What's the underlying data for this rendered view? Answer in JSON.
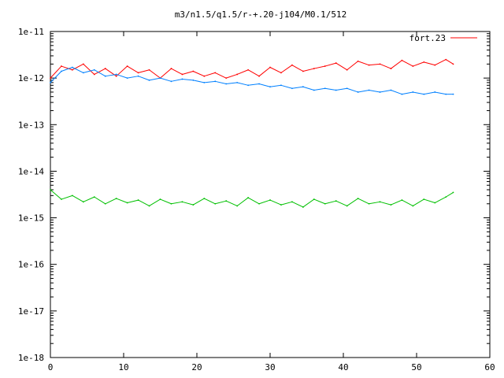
{
  "chart_data": {
    "type": "line",
    "title": "m3/n1.5/q1.5/r-+.20-j104/M0.1/512",
    "xlabel": "",
    "ylabel": "",
    "y_scale": "log",
    "xlim": [
      0,
      60
    ],
    "ylim": [
      1e-18,
      1e-11
    ],
    "x_ticks": [
      0,
      10,
      20,
      30,
      40,
      50,
      60
    ],
    "x_tick_labels": [
      "0",
      "10",
      "20",
      "30",
      "40",
      "50",
      "60"
    ],
    "y_ticks": [
      1e-18,
      1e-17,
      1e-16,
      1e-15,
      1e-14,
      1e-13,
      1e-12,
      1e-11
    ],
    "y_tick_labels": [
      "1e-18",
      "1e-17",
      "1e-16",
      "1e-15",
      "1e-14",
      "1e-13",
      "1e-12",
      "1e-11"
    ],
    "grid": false,
    "legend_position": "top-right",
    "series": [
      {
        "name": "fort.23",
        "color": "#ff0000",
        "x": [
          0,
          1.5,
          3,
          4.5,
          6,
          7.5,
          9,
          10.5,
          12,
          13.5,
          15,
          16.5,
          18,
          19.5,
          21,
          22.5,
          24,
          25.5,
          27,
          28.5,
          30,
          31.5,
          33,
          34.5,
          36,
          37.5,
          39,
          40.5,
          42,
          43.5,
          45,
          46.5,
          48,
          49.5,
          51,
          52.5,
          54,
          55
        ],
        "values": [
          1e-12,
          1.8e-12,
          1.5e-12,
          2e-12,
          1.2e-12,
          1.6e-12,
          1.1e-12,
          1.8e-12,
          1.3e-12,
          1.5e-12,
          1e-12,
          1.6e-12,
          1.2e-12,
          1.4e-12,
          1.1e-12,
          1.3e-12,
          1e-12,
          1.2e-12,
          1.5e-12,
          1.1e-12,
          1.7e-12,
          1.3e-12,
          1.9e-12,
          1.4e-12,
          1.6e-12,
          1.8e-12,
          2.1e-12,
          1.5e-12,
          2.3e-12,
          1.9e-12,
          2e-12,
          1.6e-12,
          2.4e-12,
          1.8e-12,
          2.2e-12,
          1.9e-12,
          2.5e-12,
          2e-12
        ]
      },
      {
        "color": "#0080ff",
        "x": [
          0,
          1.5,
          3,
          4.5,
          6,
          7.5,
          9,
          10.5,
          12,
          13.5,
          15,
          16.5,
          18,
          19.5,
          21,
          22.5,
          24,
          25.5,
          27,
          28.5,
          30,
          31.5,
          33,
          34.5,
          36,
          37.5,
          39,
          40.5,
          42,
          43.5,
          45,
          46.5,
          48,
          49.5,
          51,
          52.5,
          54,
          55
        ],
        "values": [
          8e-13,
          1.4e-12,
          1.7e-12,
          1.3e-12,
          1.5e-12,
          1.1e-12,
          1.2e-12,
          1e-12,
          1.1e-12,
          9e-13,
          1e-12,
          8.5e-13,
          9.5e-13,
          9e-13,
          8e-13,
          8.5e-13,
          7.5e-13,
          8e-13,
          7e-13,
          7.5e-13,
          6.5e-13,
          7e-13,
          6e-13,
          6.5e-13,
          5.5e-13,
          6e-13,
          5.5e-13,
          6e-13,
          5e-13,
          5.5e-13,
          5e-13,
          5.5e-13,
          4.5e-13,
          5e-13,
          4.5e-13,
          5e-13,
          4.5e-13,
          4.5e-13
        ]
      },
      {
        "color": "#00c000",
        "x": [
          0,
          1.5,
          3,
          4.5,
          6,
          7.5,
          9,
          10.5,
          12,
          13.5,
          15,
          16.5,
          18,
          19.5,
          21,
          22.5,
          24,
          25.5,
          27,
          28.5,
          30,
          31.5,
          33,
          34.5,
          36,
          37.5,
          39,
          40.5,
          42,
          43.5,
          45,
          46.5,
          48,
          49.5,
          51,
          52.5,
          54,
          55
        ],
        "values": [
          4e-15,
          2.5e-15,
          3e-15,
          2.2e-15,
          2.8e-15,
          2e-15,
          2.6e-15,
          2.1e-15,
          2.4e-15,
          1.8e-15,
          2.5e-15,
          2e-15,
          2.2e-15,
          1.9e-15,
          2.6e-15,
          2e-15,
          2.3e-15,
          1.8e-15,
          2.7e-15,
          2e-15,
          2.4e-15,
          1.9e-15,
          2.2e-15,
          1.7e-15,
          2.5e-15,
          2e-15,
          2.3e-15,
          1.8e-15,
          2.6e-15,
          2e-15,
          2.2e-15,
          1.9e-15,
          2.4e-15,
          1.8e-15,
          2.5e-15,
          2.1e-15,
          2.8e-15,
          3.5e-15
        ]
      }
    ]
  }
}
